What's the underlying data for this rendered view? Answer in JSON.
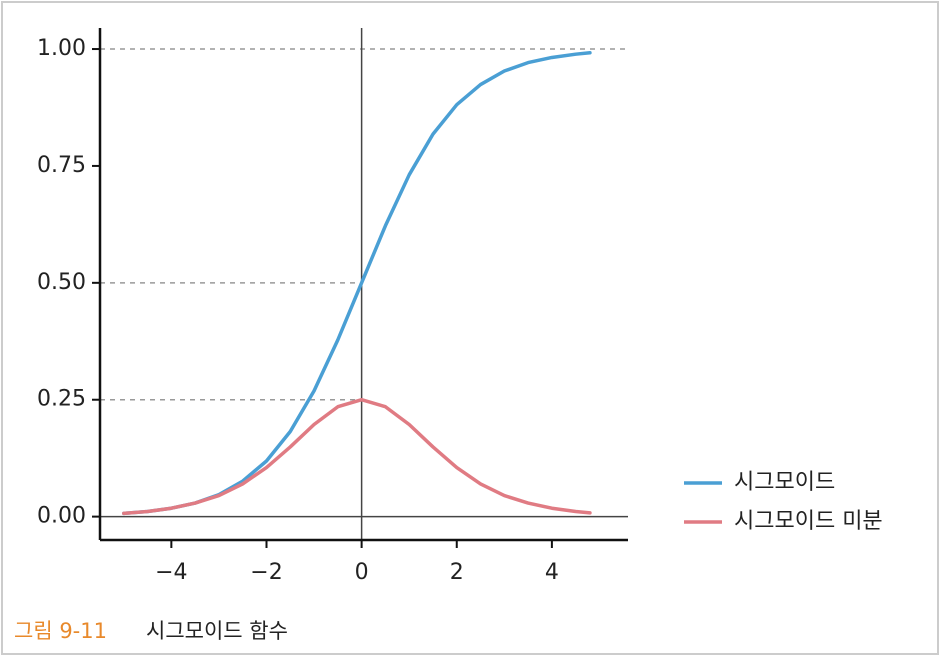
{
  "chart_data": {
    "type": "line",
    "caption_label": "그림 9-11",
    "caption": "시그모이드 함수",
    "x": [
      -5,
      -4.5,
      -4,
      -3.5,
      -3,
      -2.5,
      -2,
      -1.5,
      -1,
      -0.5,
      0,
      0.5,
      1,
      1.5,
      2,
      2.5,
      3,
      3.5,
      4,
      4.5,
      4.8
    ],
    "series": [
      {
        "name": "시그모이드",
        "color": "#4a9fd4",
        "values": [
          0.007,
          0.011,
          0.018,
          0.029,
          0.047,
          0.076,
          0.119,
          0.182,
          0.269,
          0.378,
          0.5,
          0.622,
          0.731,
          0.818,
          0.881,
          0.924,
          0.953,
          0.971,
          0.982,
          0.989,
          0.992
        ]
      },
      {
        "name": "시그모이드 미분",
        "color": "#e07b83",
        "values": [
          0.007,
          0.011,
          0.018,
          0.029,
          0.045,
          0.07,
          0.105,
          0.149,
          0.197,
          0.235,
          0.25,
          0.235,
          0.197,
          0.149,
          0.105,
          0.07,
          0.045,
          0.029,
          0.018,
          0.011,
          0.008
        ]
      }
    ],
    "xlim": [
      -5.5,
      5.6
    ],
    "ylim": [
      -0.05,
      1.045
    ],
    "xticks": [
      {
        "value": -4,
        "label": "−4"
      },
      {
        "value": -2,
        "label": "−2"
      },
      0,
      2,
      4
    ],
    "yticks": [
      {
        "value": 0,
        "label": "0.00"
      },
      0.25,
      {
        "value": 0.5,
        "label": "0.50"
      },
      0.75,
      {
        "value": 1,
        "label": "1.00"
      }
    ],
    "dashed_guides": [
      0.25,
      0.5,
      1
    ],
    "legend": "right"
  }
}
